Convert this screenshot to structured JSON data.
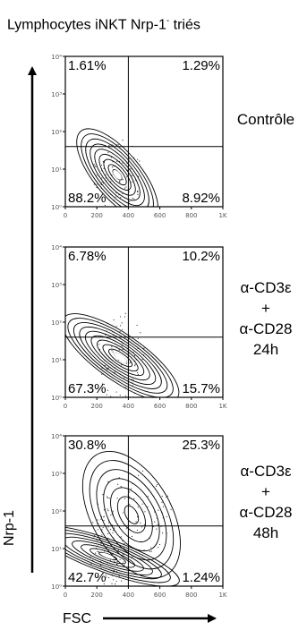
{
  "title": {
    "main": "Lymphocytes iNKT Nrp-1",
    "sup": "-",
    "suffix": " triés"
  },
  "axis_labels": {
    "y": "Nrp-1",
    "x": "FSC"
  },
  "conditions": [
    [
      "Contrôle"
    ],
    [
      "α-CD3ε",
      "+",
      "α-CD28",
      "24h"
    ],
    [
      "α-CD3ε",
      "+",
      "α-CD28",
      "48h"
    ]
  ],
  "chart_data": [
    {
      "type": "contour",
      "condition": "Contrôle",
      "x_ticks": [
        "0",
        "200",
        "400",
        "600",
        "800",
        "1K"
      ],
      "x_tick_values": [
        0,
        200,
        400,
        600,
        800,
        1000
      ],
      "xlim": [
        0,
        1000
      ],
      "y_ticks": [
        "10⁰",
        "10¹",
        "10²",
        "10³",
        "10⁴"
      ],
      "y_tick_values": [
        0,
        1,
        2,
        3,
        4
      ],
      "ylim": [
        0,
        4
      ],
      "gate": {
        "x": 400,
        "y": 1.6
      },
      "quadrants": {
        "top_left": "1.61%",
        "top_right": "1.29%",
        "bottom_left": "88.2%",
        "bottom_right": "8.92%"
      }
    },
    {
      "type": "contour",
      "condition": "α-CD3ε + α-CD28 24h",
      "x_ticks": [
        "0",
        "200",
        "400",
        "600",
        "800",
        "1K"
      ],
      "x_tick_values": [
        0,
        200,
        400,
        600,
        800,
        1000
      ],
      "xlim": [
        0,
        1000
      ],
      "y_ticks": [
        "10⁰",
        "10¹",
        "10²",
        "10³",
        "10⁴"
      ],
      "y_tick_values": [
        0,
        1,
        2,
        3,
        4
      ],
      "ylim": [
        0,
        4
      ],
      "gate": {
        "x": 400,
        "y": 1.6
      },
      "quadrants": {
        "top_left": "6.78%",
        "top_right": "10.2%",
        "bottom_left": "67.3%",
        "bottom_right": "15.7%"
      }
    },
    {
      "type": "contour",
      "condition": "α-CD3ε + α-CD28 48h",
      "x_ticks": [
        "0",
        "200",
        "400",
        "600",
        "800",
        "1K"
      ],
      "x_tick_values": [
        0,
        200,
        400,
        600,
        800,
        1000
      ],
      "xlim": [
        0,
        1000
      ],
      "y_ticks": [
        "10⁰",
        "10¹",
        "10²",
        "10³",
        "10⁴"
      ],
      "y_tick_values": [
        0,
        1,
        2,
        3,
        4
      ],
      "ylim": [
        0,
        4
      ],
      "gate": {
        "x": 400,
        "y": 1.6
      },
      "quadrants": {
        "top_left": "30.8%",
        "top_right": "25.3%",
        "bottom_left": "42.7%",
        "bottom_right": "1.24%"
      }
    }
  ]
}
